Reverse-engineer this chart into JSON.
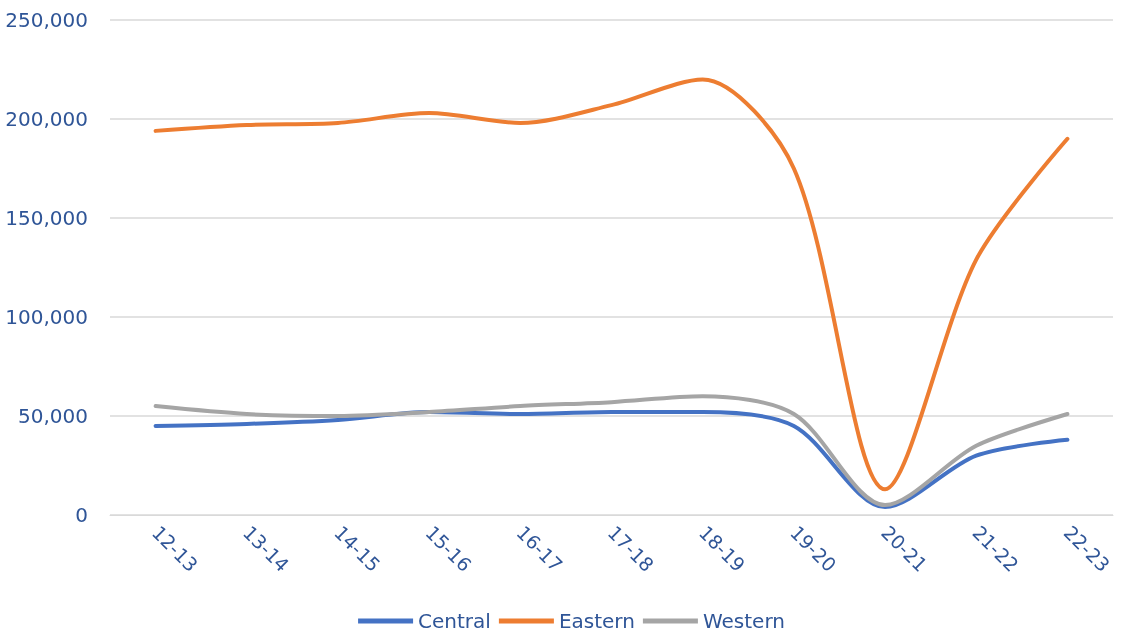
{
  "chart_data": {
    "type": "line",
    "categories": [
      "12-13",
      "13-14",
      "14-15",
      "15-16",
      "16-17",
      "17-18",
      "18-19",
      "19-20",
      "20-21",
      "21-22",
      "22-23"
    ],
    "series": [
      {
        "name": "Central",
        "color": "#4472c4",
        "values": [
          45000,
          46000,
          48000,
          52000,
          51000,
          52000,
          52000,
          45000,
          4000,
          30000,
          38000
        ]
      },
      {
        "name": "Eastern",
        "color": "#ed7d31",
        "values": [
          194000,
          197000,
          198000,
          203000,
          198000,
          207000,
          220000,
          175000,
          13000,
          129000,
          190000
        ]
      },
      {
        "name": "Western",
        "color": "#a5a5a5",
        "values": [
          55000,
          51000,
          50000,
          52000,
          55000,
          57000,
          60000,
          51000,
          5000,
          35000,
          51000
        ]
      }
    ],
    "ylim": [
      0,
      250000
    ],
    "yticks": [
      0,
      {
        "value": 50000,
        "label": "50,000"
      },
      {
        "value": 100000,
        "label": "100,000"
      },
      {
        "value": 150000,
        "label": "150,000"
      },
      {
        "value": 200000,
        "label": "200,000"
      },
      {
        "value": 250000,
        "label": "250,000"
      }
    ],
    "grid": "y",
    "legend": "bottom",
    "marker": "none",
    "line_style": "solid"
  }
}
